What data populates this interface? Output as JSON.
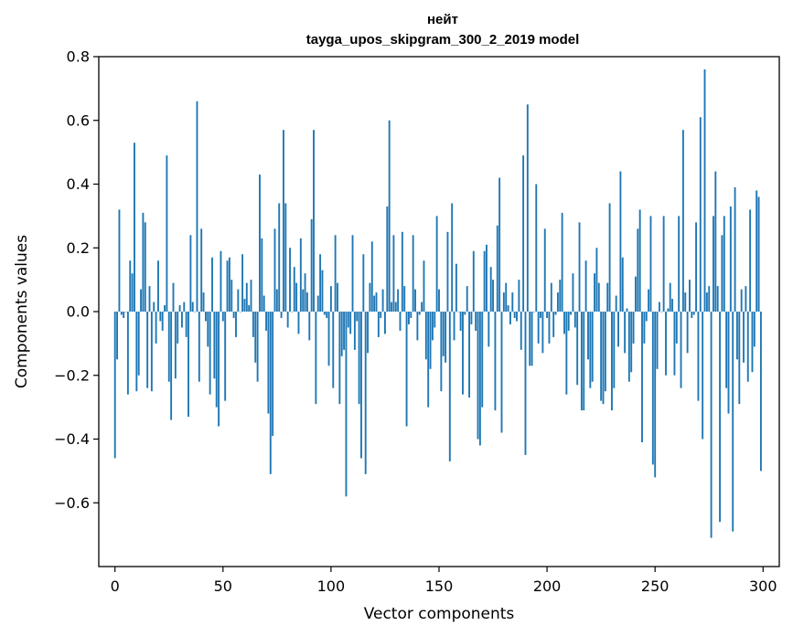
{
  "chart_data": {
    "type": "bar",
    "title": "нейт",
    "subtitle": "tayga_upos_skipgram_300_2_2019 model",
    "xlabel": "Vector components",
    "ylabel": "Components values",
    "xlim": [
      -7.5,
      307.5
    ],
    "ylim": [
      -0.8,
      0.8
    ],
    "xticks": [
      0,
      50,
      100,
      150,
      200,
      250,
      300
    ],
    "yticks": [
      -0.6,
      -0.4,
      -0.2,
      0.0,
      0.2,
      0.4,
      0.6,
      0.8
    ],
    "ytick_labels": [
      "−0.6",
      "−0.4",
      "−0.2",
      "0.0",
      "0.2",
      "0.4",
      "0.6",
      "0.8"
    ],
    "bar_color": "#1f77b4",
    "grid": false,
    "values": [
      -0.46,
      -0.15,
      0.32,
      -0.01,
      -0.02,
      0.0,
      -0.26,
      0.16,
      0.12,
      0.53,
      -0.25,
      -0.2,
      0.07,
      0.31,
      0.28,
      -0.24,
      0.08,
      -0.25,
      0.03,
      -0.1,
      0.16,
      -0.03,
      -0.06,
      0.02,
      0.49,
      -0.22,
      -0.34,
      0.09,
      -0.21,
      -0.1,
      0.02,
      -0.05,
      0.03,
      -0.08,
      -0.33,
      0.24,
      0.03,
      0.0,
      0.66,
      -0.22,
      0.26,
      0.06,
      -0.03,
      -0.11,
      -0.26,
      0.17,
      -0.21,
      -0.3,
      -0.36,
      0.19,
      -0.03,
      -0.28,
      0.16,
      0.17,
      0.1,
      -0.02,
      -0.08,
      0.07,
      0.0,
      0.18,
      0.04,
      0.09,
      0.02,
      0.1,
      -0.08,
      -0.16,
      -0.22,
      0.43,
      0.23,
      0.05,
      -0.06,
      -0.32,
      -0.51,
      -0.39,
      0.26,
      0.07,
      0.34,
      -0.02,
      0.57,
      0.34,
      -0.05,
      0.2,
      0.0,
      0.14,
      0.09,
      -0.07,
      0.23,
      0.07,
      0.12,
      0.06,
      -0.09,
      0.29,
      0.57,
      -0.29,
      0.05,
      0.18,
      0.13,
      -0.01,
      -0.02,
      -0.17,
      0.08,
      -0.24,
      0.24,
      0.09,
      -0.29,
      -0.14,
      -0.12,
      -0.58,
      -0.05,
      -0.07,
      0.24,
      -0.12,
      -0.03,
      -0.29,
      -0.46,
      0.18,
      -0.51,
      -0.13,
      0.09,
      0.22,
      0.05,
      0.06,
      -0.08,
      -0.02,
      0.07,
      -0.07,
      0.33,
      0.6,
      0.03,
      0.24,
      0.03,
      0.07,
      -0.06,
      0.25,
      0.08,
      -0.36,
      -0.04,
      -0.02,
      0.24,
      0.07,
      -0.09,
      -0.01,
      0.03,
      0.16,
      -0.15,
      -0.3,
      -0.18,
      -0.09,
      -0.05,
      0.3,
      0.07,
      -0.25,
      -0.14,
      -0.16,
      0.25,
      -0.47,
      0.34,
      -0.09,
      0.15,
      0.0,
      -0.06,
      -0.26,
      -0.01,
      0.08,
      -0.27,
      -0.04,
      0.19,
      -0.06,
      -0.4,
      -0.42,
      -0.3,
      0.19,
      0.21,
      -0.11,
      0.14,
      0.1,
      -0.31,
      0.27,
      0.42,
      -0.38,
      0.06,
      0.09,
      0.02,
      -0.04,
      0.06,
      -0.02,
      -0.03,
      0.1,
      -0.12,
      0.49,
      -0.45,
      0.65,
      -0.17,
      -0.17,
      0.0,
      0.4,
      -0.1,
      -0.02,
      -0.13,
      0.26,
      -0.02,
      -0.1,
      0.09,
      -0.08,
      -0.01,
      0.06,
      0.1,
      0.31,
      -0.07,
      -0.26,
      -0.06,
      -0.01,
      0.12,
      -0.05,
      -0.23,
      0.28,
      -0.31,
      -0.31,
      0.16,
      -0.15,
      -0.24,
      -0.22,
      0.12,
      0.2,
      0.09,
      -0.28,
      -0.29,
      -0.25,
      0.09,
      0.34,
      -0.31,
      -0.24,
      0.05,
      -0.11,
      0.44,
      0.17,
      -0.13,
      0.01,
      -0.22,
      -0.19,
      -0.1,
      0.11,
      0.26,
      0.32,
      -0.41,
      -0.1,
      -0.03,
      0.07,
      0.3,
      -0.48,
      -0.52,
      -0.18,
      0.03,
      0.0,
      0.3,
      -0.2,
      0.01,
      0.09,
      0.04,
      -0.2,
      -0.1,
      0.3,
      -0.24,
      0.57,
      0.06,
      -0.13,
      0.1,
      -0.02,
      -0.01,
      0.28,
      -0.28,
      0.61,
      -0.4,
      0.76,
      0.06,
      0.08,
      -0.71,
      0.3,
      0.44,
      0.08,
      -0.66,
      0.24,
      0.3,
      -0.24,
      -0.32,
      0.33,
      -0.69,
      0.39,
      -0.15,
      -0.29,
      0.07,
      -0.16,
      0.08,
      -0.22,
      0.32,
      -0.19,
      -0.11,
      0.38,
      0.36,
      -0.5
    ]
  }
}
